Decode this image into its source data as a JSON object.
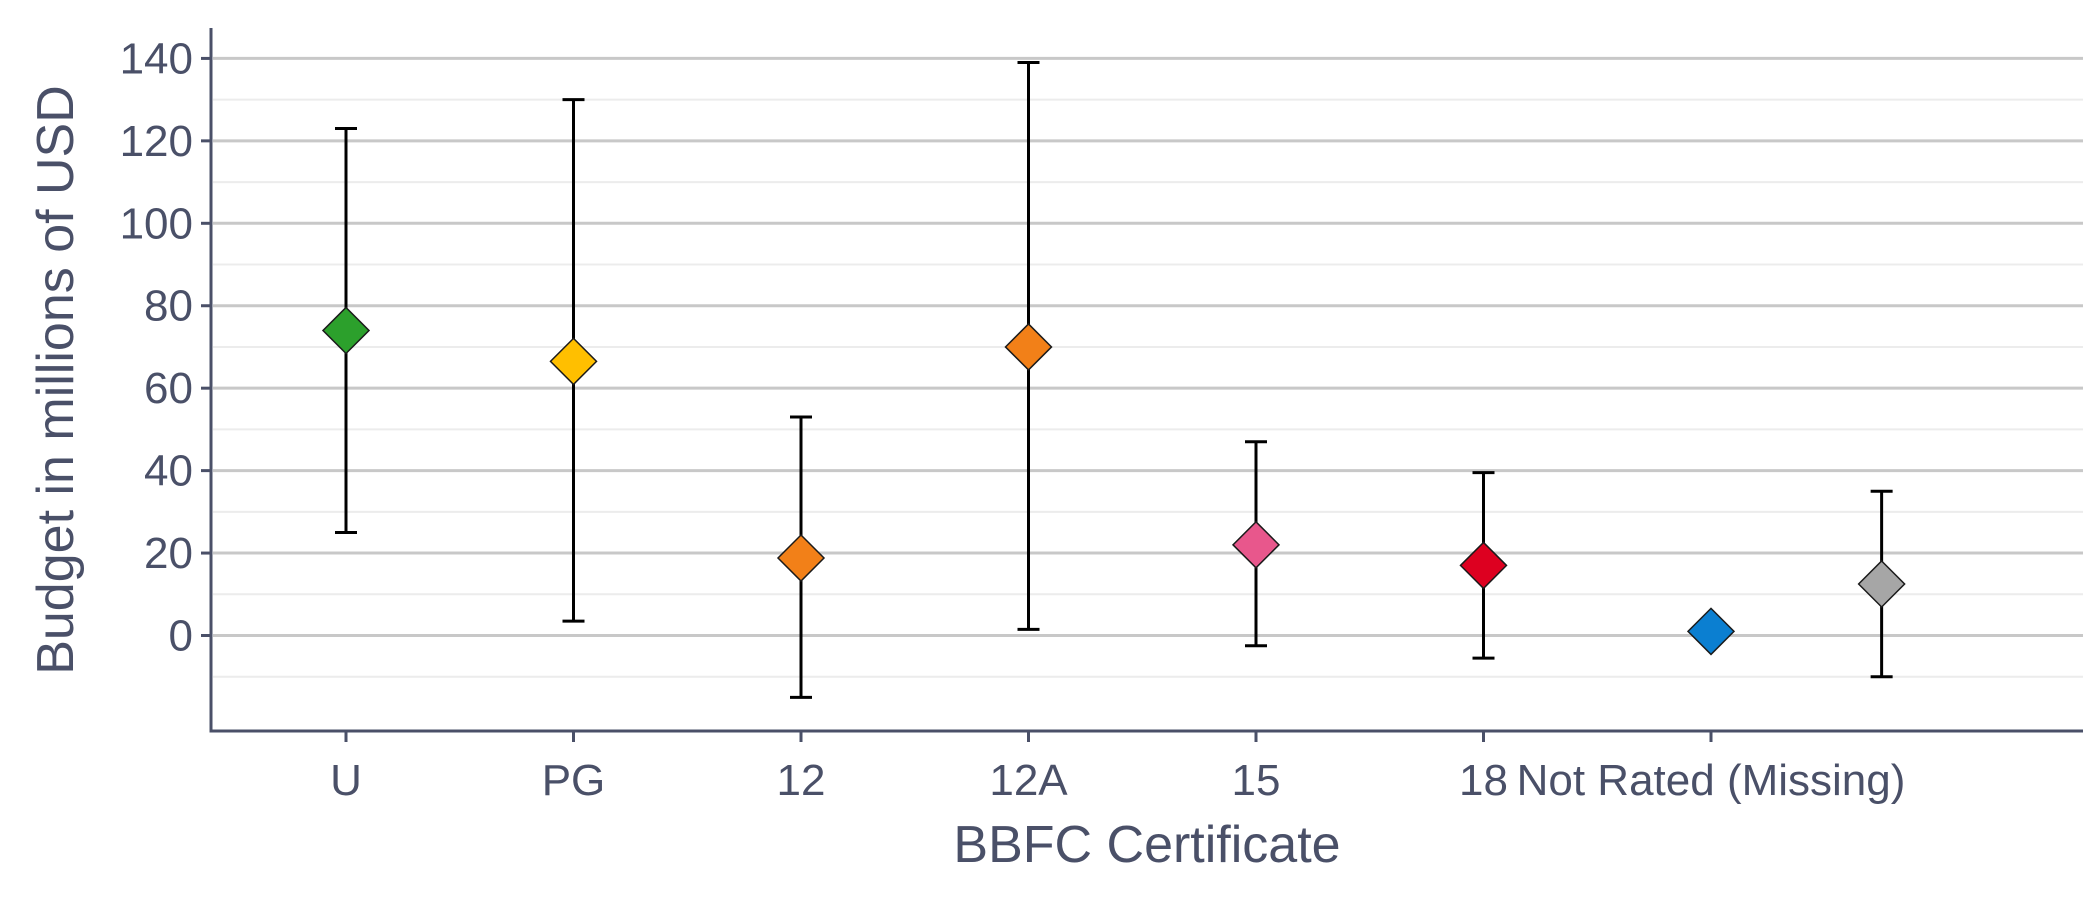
{
  "chart_data": {
    "type": "errorbar",
    "title": "",
    "xlabel": "BBFC Certificate",
    "ylabel": "Budget in millions of USD",
    "ylim": [
      -23,
      146
    ],
    "yticks": [
      0,
      20,
      40,
      60,
      80,
      100,
      120,
      140
    ],
    "grid": true,
    "legend": "none",
    "categories": [
      "U",
      "PG",
      "12",
      "12A",
      "15",
      "18",
      "Not Rated (Missing)"
    ],
    "series": [
      {
        "values": [
          74,
          66.5,
          18.8,
          70,
          22,
          17,
          1
        ],
        "lower": [
          25,
          3.5,
          -15,
          1.5,
          -2.5,
          -5.5,
          null
        ],
        "upper": [
          123,
          130,
          53,
          139,
          47,
          39.5,
          null
        ],
        "colors": [
          "#2ca02c",
          "#ffbf00",
          "#f28018",
          "#f28018",
          "#e8578c",
          "#dd0020",
          "#0b7fd1"
        ]
      },
      {
        "category": "Not Rated (Missing)",
        "value": 12.5,
        "lower": -10,
        "upper": 35,
        "color": "#a6a6a6"
      }
    ]
  }
}
